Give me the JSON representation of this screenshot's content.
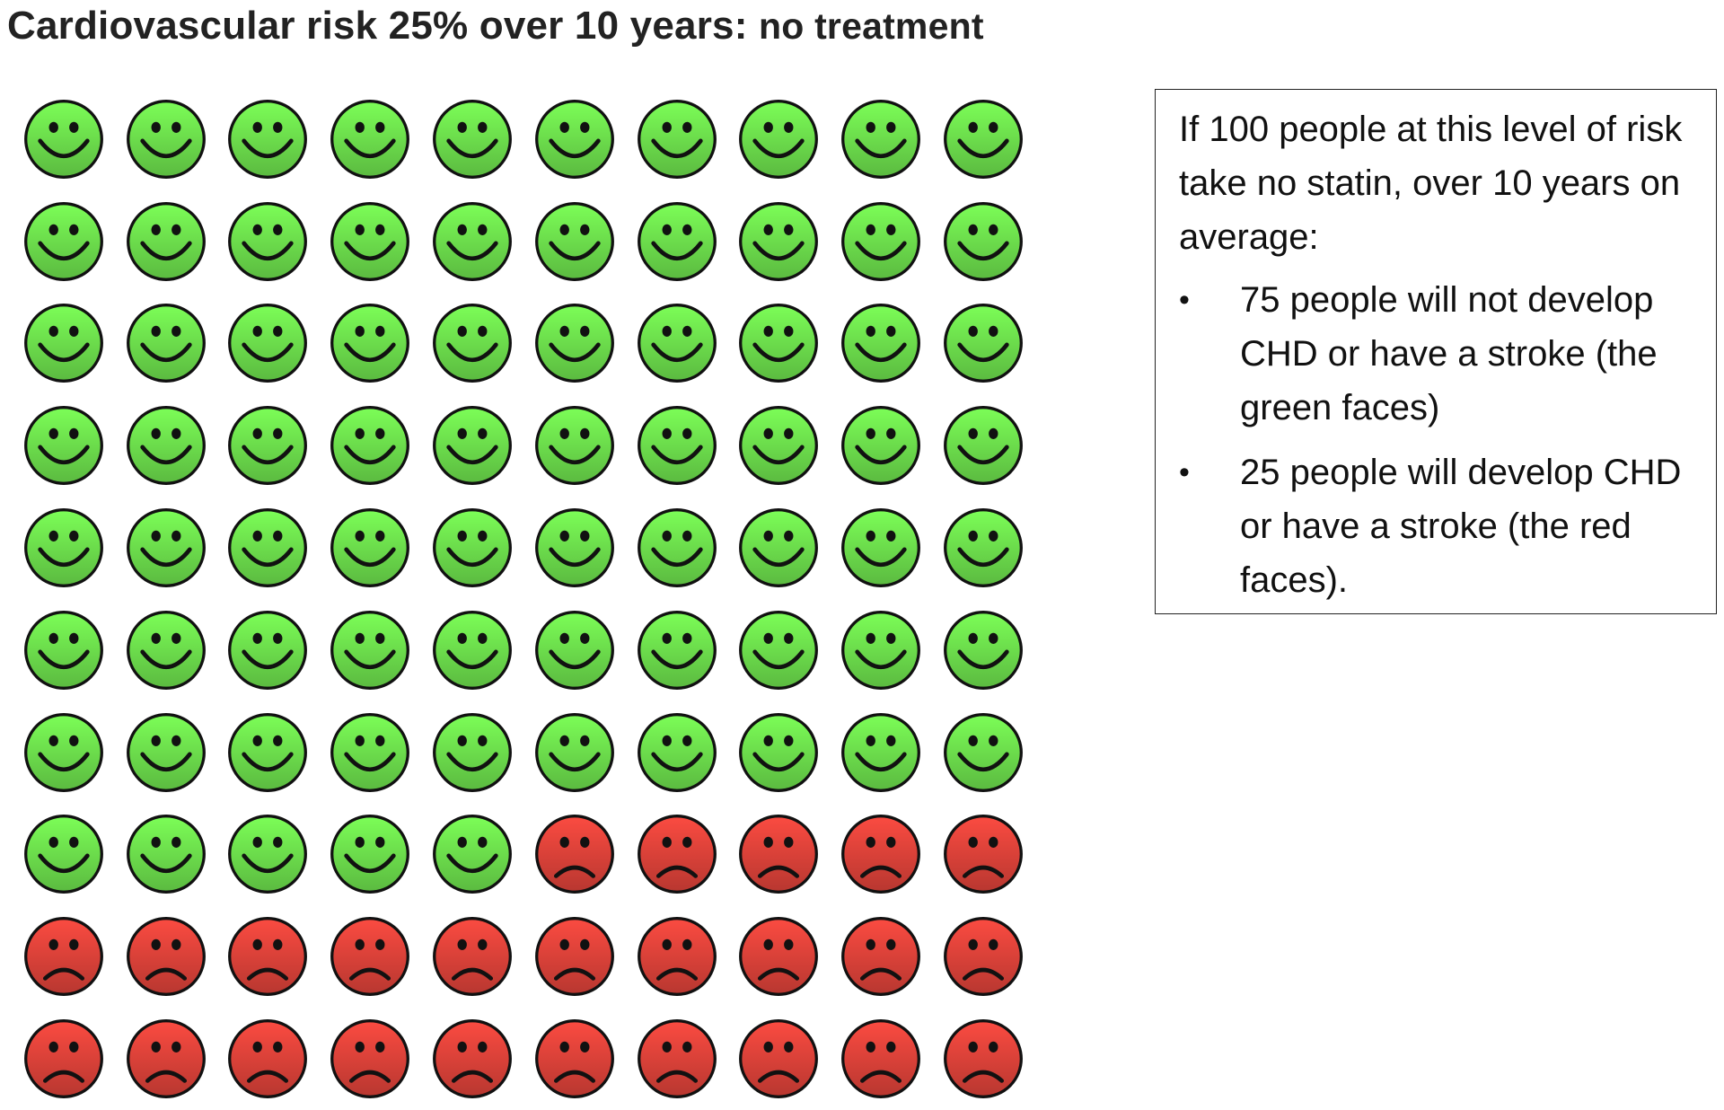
{
  "title": {
    "main": "Cardiovascular risk 25% over 10 years:",
    "suffix": "no treatment"
  },
  "grid": {
    "rows": 10,
    "columns": 10,
    "total_people": 100,
    "unaffected_count": 75,
    "affected_count": 25,
    "unaffected_face": "smiley-face-icon",
    "affected_face": "sad-face-icon",
    "unaffected_color": "#6fe34e",
    "affected_color": "#e0433a"
  },
  "info_box": {
    "intro": "If 100 people at this level of risk take no statin, over 10 years on average:",
    "items": [
      {
        "bullet": "•",
        "text": "75 people will not develop CHD or have a stroke (the green faces)"
      },
      {
        "bullet": "•",
        "text": "25 people will develop CHD or have a stroke (the red faces)."
      }
    ]
  }
}
